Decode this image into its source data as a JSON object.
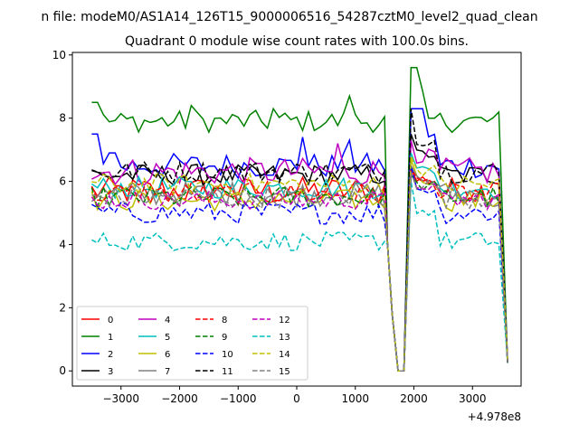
{
  "chart_data": {
    "type": "line",
    "suptitle": "n file: modeM0/AS1A14_126T15_9000006516_54287cztM0_level2_quad_clean",
    "title": "Quadrant 0 module wise count rates with 100.0s bins.",
    "xlabel": "",
    "ylabel": "",
    "offset_text": "+4.978e8",
    "xlim": [
      -3830,
      3830
    ],
    "ylim": [
      -0.48,
      10.08
    ],
    "xticks": [
      -3000,
      -2000,
      -1000,
      0,
      1000,
      2000,
      3000
    ],
    "xtick_labels": [
      "−3000",
      "−2000",
      "−1000",
      "0",
      "1000",
      "2000",
      "3000"
    ],
    "yticks": [
      0,
      2,
      4,
      6,
      8,
      10
    ],
    "ytick_labels": [
      "0",
      "2",
      "4",
      "6",
      "8",
      "10"
    ],
    "legend_location": "lower-left",
    "legend_columns": 4,
    "series": [
      {
        "name": "0",
        "color": "#ff0000",
        "style": "solid",
        "base": 5.7,
        "amp": 0.45,
        "spike": 6.4
      },
      {
        "name": "1",
        "color": "#008000",
        "style": "solid",
        "base": 7.9,
        "amp": 0.35,
        "spike": 9.6,
        "peaks": [
          [
            -3450,
            8.5
          ],
          [
            -1800,
            8.4
          ],
          [
            -400,
            8.3
          ],
          [
            900,
            8.7
          ],
          [
            2000,
            9.6
          ],
          [
            2300,
            8.0
          ]
        ]
      },
      {
        "name": "2",
        "color": "#0000ff",
        "style": "solid",
        "base": 6.5,
        "amp": 0.4,
        "spike": 8.3,
        "peaks": [
          [
            -3450,
            7.5
          ],
          [
            -3150,
            6.9
          ],
          [
            100,
            7.4
          ],
          [
            900,
            7.3
          ],
          [
            2000,
            8.3
          ],
          [
            2100,
            8.3
          ]
        ]
      },
      {
        "name": "3",
        "color": "#000000",
        "style": "solid",
        "base": 6.2,
        "amp": 0.35,
        "spike": 7.5
      },
      {
        "name": "4",
        "color": "#bf00bf",
        "style": "solid",
        "base": 6.3,
        "amp": 0.45,
        "spike": 7.3,
        "peaks": [
          [
            700,
            7.2
          ]
        ]
      },
      {
        "name": "5",
        "color": "#00bfbf",
        "style": "solid",
        "base": 5.8,
        "amp": 0.35,
        "spike": 6.9
      },
      {
        "name": "6",
        "color": "#bfbf00",
        "style": "solid",
        "base": 5.4,
        "amp": 0.35,
        "spike": 6.7
      },
      {
        "name": "7",
        "color": "#808080",
        "style": "solid",
        "base": 5.6,
        "amp": 0.4,
        "spike": 6.5
      },
      {
        "name": "8",
        "color": "#ff0000",
        "style": "dashed",
        "base": 5.6,
        "amp": 0.35,
        "spike": 6.4
      },
      {
        "name": "9",
        "color": "#008000",
        "style": "dashed",
        "base": 5.5,
        "amp": 0.35,
        "spike": 6.2
      },
      {
        "name": "10",
        "color": "#0000ff",
        "style": "dashed",
        "base": 5.0,
        "amp": 0.35,
        "spike": 6.5
      },
      {
        "name": "11",
        "color": "#000000",
        "style": "dashed",
        "base": 6.3,
        "amp": 0.35,
        "spike": 8.3
      },
      {
        "name": "12",
        "color": "#bf00bf",
        "style": "dashed",
        "base": 5.4,
        "amp": 0.3,
        "spike": 6.3
      },
      {
        "name": "13",
        "color": "#00bfbf",
        "style": "dashed",
        "base": 4.1,
        "amp": 0.3,
        "spike": 6.0
      },
      {
        "name": "14",
        "color": "#bfbf00",
        "style": "dashed",
        "base": 5.9,
        "amp": 0.35,
        "spike": 6.8
      },
      {
        "name": "15",
        "color": "#808080",
        "style": "dashed",
        "base": 5.5,
        "amp": 0.35,
        "spike": 6.3
      }
    ],
    "dip": {
      "x": [
        1550,
        1630,
        1730,
        1830,
        1950
      ],
      "values": [
        4.0,
        1.8,
        0.0,
        0.0,
        5.0
      ]
    },
    "x_start": -3500,
    "x_end": 3600,
    "bin_size": 100
  }
}
